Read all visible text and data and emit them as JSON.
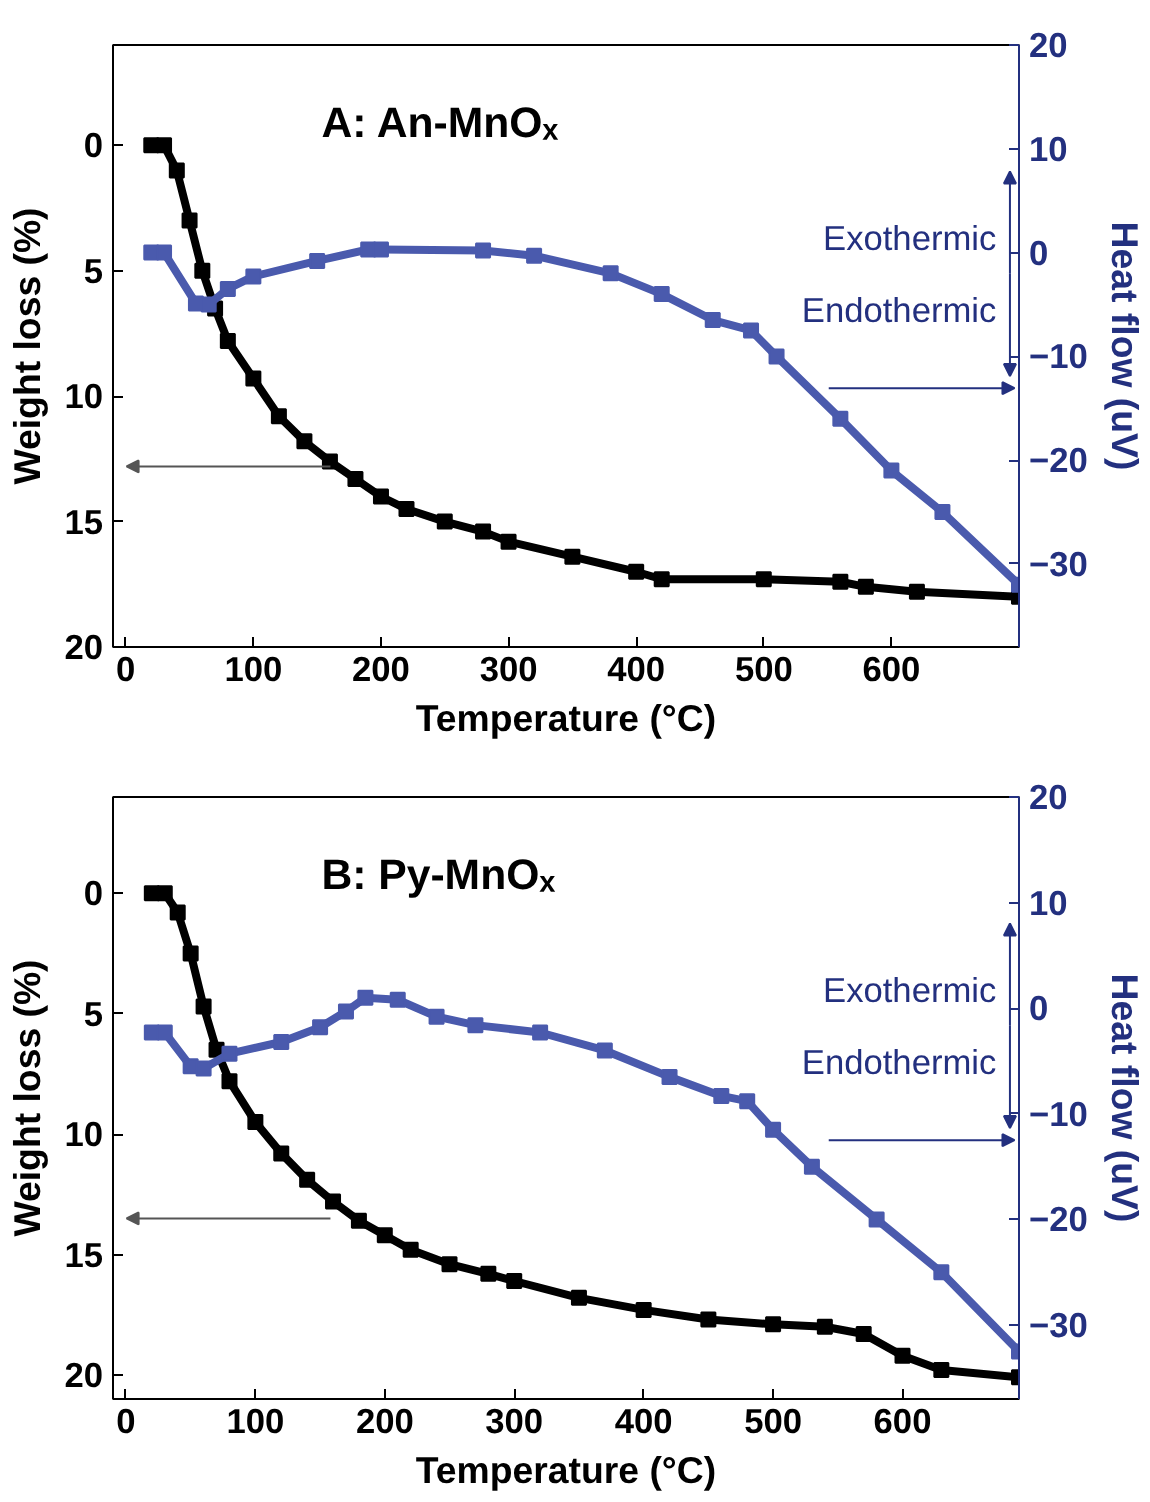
{
  "chart_data": [
    {
      "type": "line",
      "title": "A: An-MnOₓ",
      "xlabel": "Temperature (°C)",
      "ylabel": "Weight loss (%)",
      "y2label": "Heat flow (uV)",
      "annotations": [
        "Exothermic",
        "Endothermic"
      ],
      "marker": "square",
      "grid": false,
      "xlim": [
        -10,
        700
      ],
      "xticks": [
        0,
        100,
        200,
        300,
        400,
        500,
        600
      ],
      "ylim": [
        20,
        -4
      ],
      "yticks": [
        0,
        5,
        10,
        15,
        20
      ],
      "y2lim": [
        -38,
        20
      ],
      "y2ticks": [
        20,
        10,
        0,
        -10,
        -20,
        -30
      ],
      "series": [
        {
          "color": "#000000",
          "x": [
            20,
            30,
            40,
            50,
            60,
            70,
            80,
            100,
            120,
            140,
            160,
            180,
            200,
            220,
            250,
            280,
            300,
            350,
            400,
            420,
            500,
            560,
            580,
            620,
            700
          ],
          "values": [
            0,
            0,
            1,
            3,
            5,
            6.5,
            7.8,
            9.3,
            10.8,
            11.8,
            12.6,
            13.3,
            14,
            14.5,
            15,
            15.4,
            15.8,
            16.4,
            17,
            17.3,
            17.3,
            17.4,
            17.6,
            17.8,
            18
          ]
        },
        {
          "color": "#4a5aad",
          "axis": "y2",
          "x": [
            20,
            30,
            55,
            65,
            80,
            100,
            150,
            190,
            200,
            280,
            320,
            380,
            420,
            460,
            490,
            510,
            560,
            600,
            640,
            700
          ],
          "values": [
            0,
            0,
            -4.9,
            -5,
            -3.5,
            -2.3,
            -0.8,
            0.3,
            0.3,
            0.2,
            -0.3,
            -2,
            -4,
            -6.5,
            -7.5,
            -10,
            -16,
            -21,
            -25,
            -32
          ]
        }
      ]
    },
    {
      "type": "line",
      "title": "B: Py-MnOₓ",
      "xlabel": "Temperature (°C)",
      "ylabel": "Weight loss (%)",
      "y2label": "Heat flow (uV)",
      "annotations": [
        "Exothermic",
        "Endothermic"
      ],
      "marker": "square",
      "grid": false,
      "xlim": [
        -10,
        690
      ],
      "xticks": [
        0,
        100,
        200,
        300,
        400,
        500,
        600
      ],
      "ylim": [
        21,
        -4
      ],
      "yticks": [
        0,
        5,
        10,
        15,
        20
      ],
      "y2lim": [
        -37,
        20
      ],
      "y2ticks": [
        20,
        10,
        0,
        -10,
        -20,
        -30
      ],
      "series": [
        {
          "color": "#000000",
          "x": [
            20,
            30,
            40,
            50,
            60,
            70,
            80,
            100,
            120,
            140,
            160,
            180,
            200,
            220,
            250,
            280,
            300,
            350,
            400,
            450,
            500,
            540,
            570,
            600,
            630,
            690
          ],
          "values": [
            0,
            0,
            0.8,
            2.5,
            4.7,
            6.5,
            7.8,
            9.5,
            10.8,
            11.9,
            12.8,
            13.6,
            14.2,
            14.8,
            15.4,
            15.8,
            16.1,
            16.8,
            17.3,
            17.7,
            17.9,
            18,
            18.3,
            19.2,
            19.8,
            20.1
          ]
        },
        {
          "color": "#4a5aad",
          "axis": "y2",
          "x": [
            20,
            30,
            50,
            60,
            80,
            120,
            150,
            170,
            185,
            210,
            240,
            270,
            320,
            370,
            420,
            460,
            480,
            500,
            530,
            580,
            630,
            690
          ],
          "values": [
            -2.3,
            -2.3,
            -5.5,
            -5.7,
            -4.3,
            -3.2,
            -1.8,
            -0.3,
            1,
            0.8,
            -0.8,
            -1.6,
            -2.3,
            -4,
            -6.5,
            -8.3,
            -8.8,
            -11.5,
            -15,
            -20,
            -25,
            -32.5
          ]
        }
      ]
    }
  ]
}
